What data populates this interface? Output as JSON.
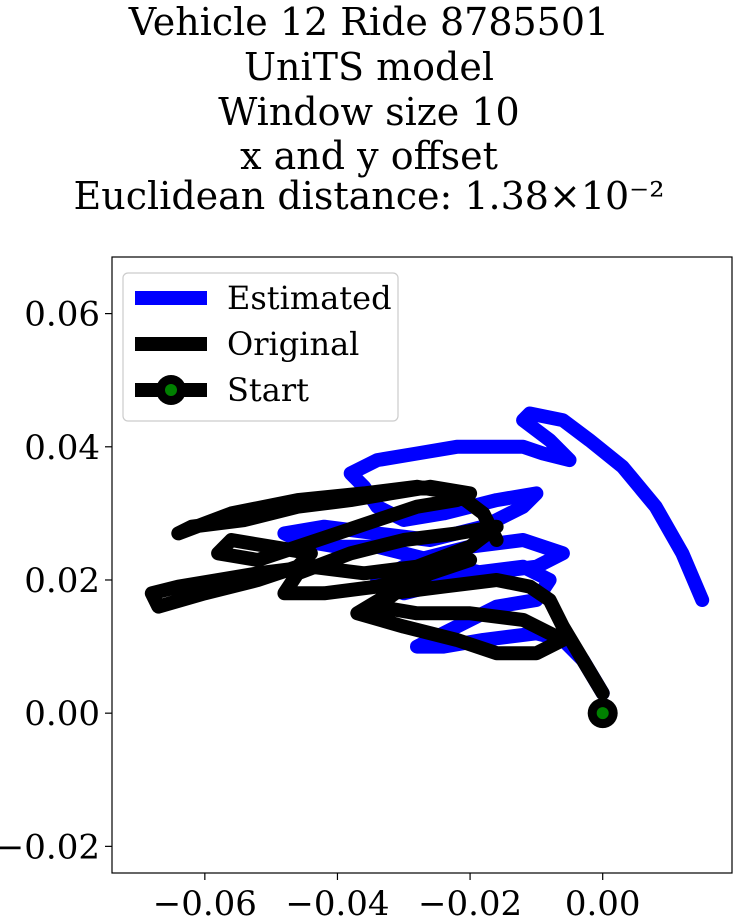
{
  "title_lines": [
    "Vehicle 12 Ride 8785501",
    "UniTS model",
    "Window size 10",
    "x and y offset",
    "Euclidean distance: 1.38×10⁻²"
  ],
  "chart_data": {
    "type": "line",
    "title": "Vehicle 12 Ride 8785501 / UniTS model / Window size 10 / x and y offset / Euclidean distance: 1.38×10⁻²",
    "xlabel": "",
    "ylabel": "",
    "xlim": [
      -0.074,
      0.0195
    ],
    "ylim": [
      -0.024,
      0.0685
    ],
    "x_ticks": [
      "−0.06",
      "−0.04",
      "−0.02",
      "0.00"
    ],
    "x_tick_values": [
      -0.06,
      -0.04,
      -0.02,
      0.0
    ],
    "y_ticks": [
      "−0.02",
      "0.00",
      "0.02",
      "0.04",
      "0.06"
    ],
    "y_tick_values": [
      -0.02,
      0.0,
      0.02,
      0.04,
      0.06
    ],
    "grid": false,
    "legend_position": "upper left",
    "series": [
      {
        "name": "Estimated",
        "color": "#0000ff",
        "x": [
          0.0,
          -0.003,
          -0.006,
          -0.01,
          -0.018,
          -0.024,
          -0.028,
          -0.022,
          -0.016,
          -0.01,
          -0.008,
          -0.012,
          -0.02,
          -0.026,
          -0.03,
          -0.034,
          -0.028,
          -0.02,
          -0.012,
          -0.006,
          -0.01,
          -0.018,
          -0.026,
          -0.034,
          -0.04,
          -0.046,
          -0.048,
          -0.042,
          -0.034,
          -0.026,
          -0.018,
          -0.012,
          -0.01,
          -0.016,
          -0.024,
          -0.03,
          -0.034,
          -0.036,
          -0.038,
          -0.034,
          -0.028,
          -0.022,
          -0.016,
          -0.012,
          -0.009,
          -0.005,
          -0.008,
          -0.012,
          -0.011,
          -0.006,
          -0.002,
          0.003,
          0.008,
          0.012,
          0.015
        ],
        "y": [
          0.003,
          0.008,
          0.011,
          0.012,
          0.011,
          0.01,
          0.01,
          0.013,
          0.016,
          0.017,
          0.02,
          0.022,
          0.021,
          0.019,
          0.018,
          0.02,
          0.023,
          0.025,
          0.026,
          0.024,
          0.022,
          0.021,
          0.023,
          0.025,
          0.025,
          0.026,
          0.027,
          0.028,
          0.027,
          0.026,
          0.028,
          0.031,
          0.033,
          0.032,
          0.03,
          0.029,
          0.031,
          0.034,
          0.036,
          0.038,
          0.039,
          0.04,
          0.04,
          0.04,
          0.039,
          0.038,
          0.041,
          0.044,
          0.045,
          0.044,
          0.041,
          0.037,
          0.031,
          0.024,
          0.017
        ]
      },
      {
        "name": "Original",
        "color": "#000000",
        "x": [
          0.0,
          -0.003,
          -0.006,
          -0.008,
          -0.011,
          -0.016,
          -0.024,
          -0.032,
          -0.037,
          -0.03,
          -0.022,
          -0.016,
          -0.01,
          -0.006,
          -0.012,
          -0.02,
          -0.028,
          -0.034,
          -0.03,
          -0.024,
          -0.02,
          -0.026,
          -0.034,
          -0.042,
          -0.048,
          -0.046,
          -0.038,
          -0.03,
          -0.022,
          -0.016,
          -0.02,
          -0.028,
          -0.036,
          -0.044,
          -0.052,
          -0.058,
          -0.064,
          -0.068,
          -0.067,
          -0.06,
          -0.052,
          -0.046,
          -0.044,
          -0.05,
          -0.056,
          -0.058,
          -0.052,
          -0.046,
          -0.04,
          -0.034,
          -0.028,
          -0.022,
          -0.02,
          -0.026,
          -0.032,
          -0.038,
          -0.046,
          -0.054,
          -0.062,
          -0.064,
          -0.056,
          -0.046,
          -0.036,
          -0.028,
          -0.022,
          -0.018,
          -0.016
        ],
        "y": [
          0.003,
          0.008,
          0.013,
          0.017,
          0.019,
          0.02,
          0.019,
          0.018,
          0.015,
          0.013,
          0.011,
          0.009,
          0.009,
          0.011,
          0.014,
          0.015,
          0.015,
          0.016,
          0.019,
          0.022,
          0.023,
          0.021,
          0.019,
          0.018,
          0.018,
          0.021,
          0.024,
          0.026,
          0.027,
          0.028,
          0.025,
          0.022,
          0.021,
          0.022,
          0.021,
          0.02,
          0.019,
          0.018,
          0.016,
          0.018,
          0.02,
          0.022,
          0.024,
          0.025,
          0.026,
          0.024,
          0.023,
          0.025,
          0.027,
          0.029,
          0.031,
          0.032,
          0.033,
          0.034,
          0.033,
          0.032,
          0.031,
          0.029,
          0.028,
          0.027,
          0.03,
          0.032,
          0.033,
          0.034,
          0.033,
          0.03,
          0.026
        ]
      }
    ],
    "start_marker": {
      "name": "Start",
      "x": 0.0,
      "y": 0.0,
      "edge_color": "#000000",
      "face_color": "#008000"
    }
  }
}
